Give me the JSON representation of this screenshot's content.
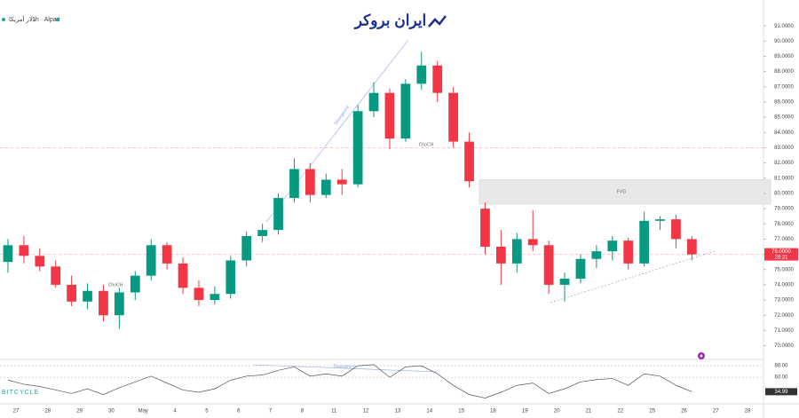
{
  "chart_data": {
    "type": "candlestick",
    "title": "دلار آمریکا",
    "subtitle": "1h · Alpari",
    "logo": "ایران بروکر",
    "watermark": "BITCYCLE",
    "categories": [
      "27",
      null,
      "28",
      null,
      "29",
      null,
      "30",
      null,
      "May",
      null,
      "4",
      null,
      "5",
      null,
      "6",
      null,
      "7",
      null,
      "8",
      null,
      "11",
      null,
      "12",
      null,
      "13",
      null,
      "14",
      null,
      "15",
      null,
      "18",
      null,
      "19",
      null,
      "20",
      null,
      "21",
      null,
      "22",
      null,
      "25",
      null,
      "26",
      null,
      "27",
      null,
      "28",
      null
    ],
    "open": [
      75.5,
      76.6,
      75.9,
      75.2,
      74.0,
      72.9,
      73.6,
      72.0,
      73.5,
      74.6,
      76.6,
      75.4,
      73.8,
      73.0,
      73.4,
      75.6,
      77.2,
      77.6,
      79.7,
      81.6,
      79.9,
      80.9,
      80.6,
      85.4,
      86.6,
      83.6,
      87.2,
      88.4,
      86.6,
      83.4,
      79.0,
      76.5,
      75.4,
      77.0,
      76.6,
      74.0,
      74.4,
      75.7,
      76.2,
      76.9,
      75.4,
      78.2,
      78.3,
      77.0,
      null,
      null,
      null,
      null
    ],
    "high": [
      77.0,
      77.2,
      76.4,
      75.6,
      74.6,
      74.1,
      74.0,
      73.8,
      74.9,
      77.0,
      76.8,
      75.8,
      74.3,
      73.9,
      75.9,
      77.5,
      78.0,
      80.0,
      82.3,
      82.0,
      81.3,
      81.6,
      85.8,
      87.3,
      86.9,
      87.5,
      89.3,
      88.7,
      87.0,
      84.0,
      79.4,
      77.6,
      77.4,
      78.9,
      76.9,
      74.8,
      76.0,
      76.6,
      77.2,
      77.1,
      78.8,
      78.5,
      78.6,
      77.2,
      null,
      null,
      null,
      null
    ],
    "low": [
      74.8,
      75.4,
      74.9,
      73.8,
      72.6,
      72.4,
      71.6,
      71.1,
      73.0,
      74.3,
      75.0,
      73.4,
      72.6,
      72.7,
      73.1,
      75.2,
      76.8,
      77.3,
      79.4,
      79.4,
      79.7,
      79.9,
      80.4,
      85.0,
      82.9,
      83.4,
      86.8,
      86.0,
      83.0,
      80.4,
      76.0,
      74.0,
      74.8,
      76.2,
      73.4,
      72.9,
      74.1,
      75.1,
      75.6,
      75.0,
      75.2,
      77.6,
      76.4,
      75.6,
      null,
      null,
      null,
      null
    ],
    "close": [
      76.6,
      75.9,
      75.2,
      74.0,
      72.9,
      73.6,
      72.0,
      73.5,
      74.6,
      76.6,
      75.4,
      73.8,
      73.0,
      73.4,
      75.6,
      77.2,
      77.6,
      79.7,
      81.6,
      79.9,
      80.9,
      80.6,
      85.4,
      86.6,
      83.6,
      87.2,
      88.4,
      86.6,
      83.4,
      80.8,
      76.5,
      75.4,
      77.0,
      76.6,
      74.0,
      74.4,
      75.7,
      76.2,
      76.9,
      75.4,
      78.2,
      78.3,
      77.0,
      76.0,
      null,
      null,
      null,
      null
    ],
    "up_color": "#089981",
    "down_color": "#f23645",
    "ylim": [
      69.1,
      92.7
    ],
    "yticks": [
      {
        "value": 70,
        "label": "70.0000"
      },
      {
        "value": 71,
        "label": "71.0000"
      },
      {
        "value": 72,
        "label": "72.0000"
      },
      {
        "value": 73,
        "label": "73.0000"
      },
      {
        "value": 74,
        "label": "74.0000"
      },
      {
        "value": 75,
        "label": "75.0000"
      },
      {
        "value": 76,
        "label": "76.0000"
      },
      {
        "value": 77,
        "label": "77.0000"
      },
      {
        "value": 78,
        "label": "78.0000"
      },
      {
        "value": 79,
        "label": "79.0000"
      },
      {
        "value": 80,
        "label": "80.0000"
      },
      {
        "value": 81,
        "label": "81.0000"
      },
      {
        "value": 82,
        "label": "82.0000"
      },
      {
        "value": 83,
        "label": "83.0000"
      },
      {
        "value": 84,
        "label": "84.0000"
      },
      {
        "value": 85,
        "label": "85.0000"
      },
      {
        "value": 86,
        "label": "86.0000"
      },
      {
        "value": 87,
        "label": "87.0000"
      },
      {
        "value": 88,
        "label": "88.0000"
      },
      {
        "value": 89,
        "label": "89.0000"
      },
      {
        "value": 90,
        "label": "90.0000"
      },
      {
        "value": 91,
        "label": "91.0000"
      }
    ],
    "reference_lines": [
      83,
      76
    ],
    "zone": {
      "range": [
        79.3,
        80.9
      ],
      "label": "FVG"
    },
    "current_price": {
      "value": 76.0,
      "label": "76.0000",
      "countdown": "28:31"
    },
    "annotations": [
      "ChoCH",
      "ChoCH",
      "Divergence",
      "Divergence"
    ],
    "rsi": {
      "values": [
        55,
        48,
        44,
        38,
        32,
        40,
        30,
        42,
        52,
        62,
        50,
        38,
        34,
        40,
        55,
        62,
        64,
        72,
        78,
        62,
        66,
        62,
        80,
        82,
        60,
        78,
        80,
        66,
        46,
        30,
        24,
        34,
        46,
        50,
        32,
        40,
        52,
        56,
        58,
        46,
        66,
        62,
        46,
        35,
        null,
        null,
        null,
        null
      ],
      "ylim": [
        14,
        91
      ],
      "yticks": [
        {
          "value": 80,
          "label": "80.00"
        },
        {
          "value": 60,
          "label": "60.00"
        }
      ],
      "current": {
        "value": 34.99,
        "label": "34.99"
      },
      "color": "#555"
    }
  }
}
